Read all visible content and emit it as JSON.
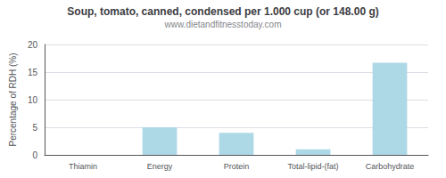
{
  "chart_data": {
    "type": "bar",
    "title": "Soup, tomato, canned, condensed per 1.000 cup (or 148.00 g)",
    "subtitle": "www.dietandfitnesstoday.com",
    "categories": [
      "Thiamin",
      "Energy",
      "Protein",
      "Total-lipid-(fat)",
      "Carbohydrate"
    ],
    "values": [
      0.0,
      5.0,
      4.0,
      1.0,
      16.7
    ],
    "color": "#add8e6",
    "ylabel": "Percentage of RDH (%)",
    "ylim": [
      0,
      20
    ],
    "yticks": [
      0,
      5,
      10,
      15,
      20
    ],
    "grid": true
  }
}
